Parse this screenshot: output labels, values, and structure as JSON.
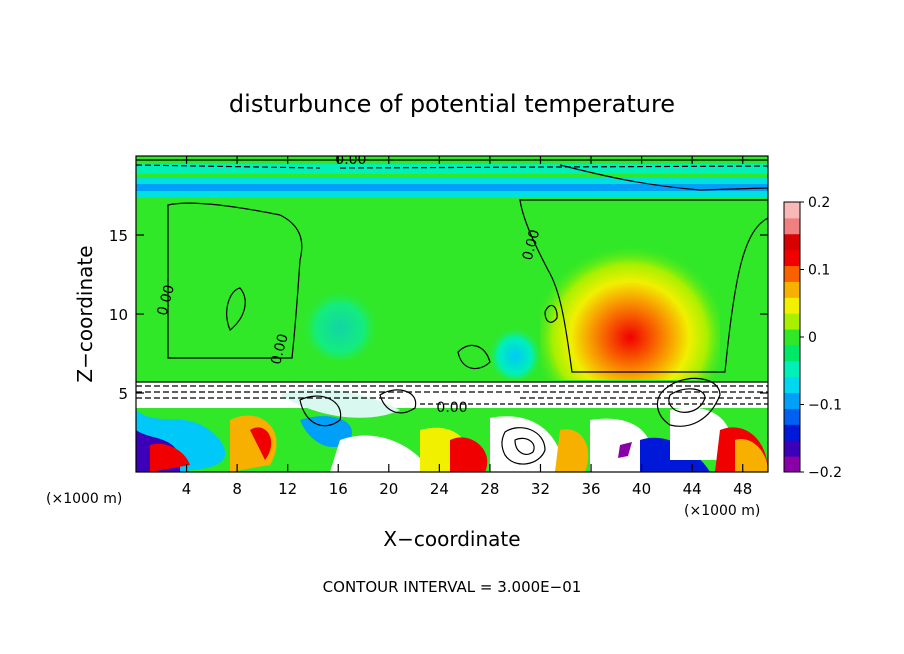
{
  "chart_data": {
    "type": "heatmap",
    "title": "disturbunce of potential temperature",
    "xlabel": "X−coordinate",
    "ylabel": "Z−coordinate",
    "x_unit_left": "(×1000 m)",
    "x_unit_right": "(×1000 m)",
    "xlim": [
      0,
      50
    ],
    "ylim": [
      0,
      20
    ],
    "x_ticks": [
      4,
      8,
      12,
      16,
      20,
      24,
      28,
      32,
      36,
      40,
      44,
      48
    ],
    "y_ticks": [
      5,
      10,
      15
    ],
    "contour_interval": "CONTOUR INTERVAL = 3.000E−01",
    "contour_labels": [
      {
        "text": "0.00",
        "x": 17.0,
        "y": 19.5
      },
      {
        "text": "0.00",
        "x": 2.7,
        "y": 10.8
      },
      {
        "text": "0.00",
        "x": 11.7,
        "y": 7.7
      },
      {
        "text": "0.00",
        "x": 31.6,
        "y": 14.3
      },
      {
        "text": "0.00",
        "x": 25.0,
        "y": 3.8
      }
    ],
    "colorbar": {
      "min": -0.2,
      "max": 0.2,
      "tick_labels": [
        "0.2",
        "0.1",
        "0",
        "−0.1",
        "−0.2"
      ],
      "tick_values": [
        0.2,
        0.1,
        0.0,
        -0.1,
        -0.2
      ],
      "colors": [
        "#8a00a8",
        "#3c00b8",
        "#0018d8",
        "#0060f0",
        "#00a0f8",
        "#00d8f0",
        "#00f0b8",
        "#00e868",
        "#30e828",
        "#a8f000",
        "#f0f000",
        "#f8b000",
        "#f86000",
        "#f00000",
        "#d80000",
        "#f08080",
        "#f8b8b8"
      ]
    },
    "regions": [
      {
        "x0": 0,
        "x1": 50,
        "y0": 6,
        "y1": 17.2,
        "value": 0.0
      },
      {
        "x0": 33,
        "x1": 43,
        "y0": 6,
        "y1": 12,
        "value": 0.06
      },
      {
        "x0": 35,
        "x1": 41,
        "y0": 6,
        "y1": 9,
        "value": 0.12
      },
      {
        "x0": 0,
        "x1": 50,
        "y0": 17.2,
        "y1": 18.6,
        "value": -0.06
      },
      {
        "x0": 0,
        "x1": 50,
        "y0": 0,
        "y1": 6,
        "value": 0.0
      }
    ]
  }
}
